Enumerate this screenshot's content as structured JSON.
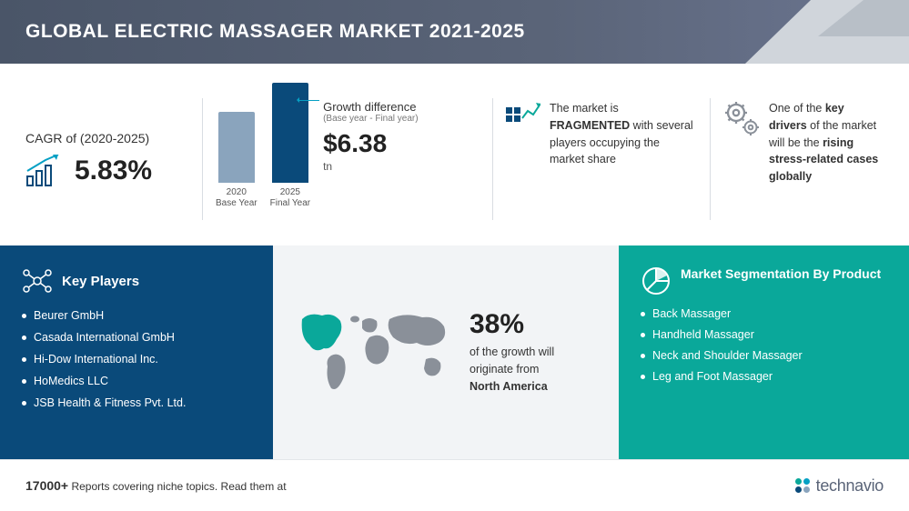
{
  "header": {
    "title": "GLOBAL ELECTRIC MASSAGER MARKET 2021-2025"
  },
  "cagr": {
    "label": "CAGR of (2020-2025)",
    "value": "5.83%",
    "icon_color": "#06a0c4"
  },
  "growth": {
    "title": "Growth difference",
    "subtitle": "(Base year - Final year)",
    "value": "$6.38",
    "unit": "tn",
    "bars": [
      {
        "label_line1": "2020",
        "label_line2": "Base Year",
        "height": 78,
        "color": "#8aa4bd"
      },
      {
        "label_line1": "2025",
        "label_line2": "Final Year",
        "height": 110,
        "color": "#0a4a7a"
      }
    ],
    "arrow_color": "#06a0c4"
  },
  "fragmented": {
    "text_pre": "The market is ",
    "text_bold": "FRAGMENTED",
    "text_post": " with several players occupying the market share",
    "icon_color": "#0a4a7a"
  },
  "driver": {
    "text_pre": "One of the ",
    "text_bold1": "key drivers",
    "text_mid": " of the market will be the ",
    "text_bold2": "rising stress-related cases globally",
    "icon_color": "#8a9099"
  },
  "key_players": {
    "title": "Key Players",
    "items": [
      "Beurer GmbH",
      "Casada International GmbH",
      "Hi-Dow International Inc.",
      "HoMedics LLC",
      "JSB Health & Fitness Pvt. Ltd."
    ],
    "bg_color": "#0a4a7a"
  },
  "geo": {
    "percent": "38%",
    "desc_pre": "of the growth will originate from ",
    "desc_bold": "North America",
    "map_color": "#8a9099",
    "highlight_color": "#0aa89a"
  },
  "segmentation": {
    "title": "Market Segmentation By Product",
    "items": [
      "Back Massager",
      "Handheld Massager",
      "Neck and Shoulder Massager",
      "Leg and Foot Massager"
    ],
    "bg_color": "#0aa89a"
  },
  "footer": {
    "count": "17000+",
    "text": " Reports covering niche topics. Read them at",
    "logo_text": "technavio",
    "logo_colors": [
      "#0aa89a",
      "#06a0c4",
      "#0a4a7a",
      "#8aa4bd"
    ]
  }
}
